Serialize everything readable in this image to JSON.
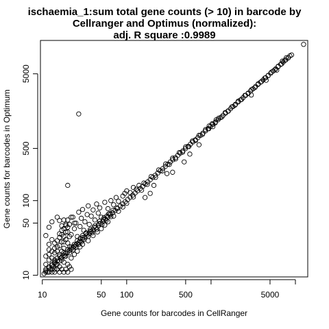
{
  "chart_data": {
    "type": "scatter",
    "title_lines": [
      "ischaemia_1:sum total gene counts (> 10) in barcode by",
      "Cellranger and Optimus (normalized):",
      "adj. R square :0.9989"
    ],
    "xlabel": "Gene counts for barcodes in CellRanger",
    "ylabel": "Gene counts for barcodes in Optimum",
    "xscale": "log",
    "yscale": "log",
    "xlim": [
      9.5,
      14000
    ],
    "ylim": [
      9.5,
      14000
    ],
    "xticks": [
      {
        "value": 10,
        "label": "10"
      },
      {
        "value": 50,
        "label": "50"
      },
      {
        "value": 100,
        "label": "100"
      },
      {
        "value": 500,
        "label": "500"
      },
      {
        "value": 1000,
        "label": ""
      },
      {
        "value": 5000,
        "label": "5000"
      },
      {
        "value": 10000,
        "label": ""
      }
    ],
    "yticks": [
      {
        "value": 10,
        "label": "10"
      },
      {
        "value": 50,
        "label": "50"
      },
      {
        "value": 100,
        "label": "100"
      },
      {
        "value": 500,
        "label": "500"
      },
      {
        "value": 5000,
        "label": "5000"
      }
    ],
    "grid": false,
    "legend": "none",
    "marker": "open-circle",
    "points": [
      [
        10.5,
        10.5
      ],
      [
        11,
        11.5
      ],
      [
        11.5,
        11
      ],
      [
        12,
        12.5
      ],
      [
        12.5,
        12
      ],
      [
        13,
        13.5
      ],
      [
        13.5,
        13
      ],
      [
        14,
        14.5
      ],
      [
        14.5,
        14
      ],
      [
        15,
        15.5
      ],
      [
        16,
        15.5
      ],
      [
        16.5,
        17
      ],
      [
        17,
        17.5
      ],
      [
        18,
        18.5
      ],
      [
        18.5,
        18
      ],
      [
        19,
        19.5
      ],
      [
        20,
        20.5
      ],
      [
        21,
        21.5
      ],
      [
        22,
        22.5
      ],
      [
        23,
        23.5
      ],
      [
        24,
        24.5
      ],
      [
        25,
        25.5
      ],
      [
        26,
        26.5
      ],
      [
        27,
        27.5
      ],
      [
        28,
        28.5
      ],
      [
        30,
        30.5
      ],
      [
        32,
        32.5
      ],
      [
        34,
        34.5
      ],
      [
        36,
        36.5
      ],
      [
        38,
        38.5
      ],
      [
        40,
        40.5
      ],
      [
        43,
        43.5
      ],
      [
        46,
        46.5
      ],
      [
        49,
        49.5
      ],
      [
        52,
        52.5
      ],
      [
        56,
        56.5
      ],
      [
        60,
        60.5
      ],
      [
        64,
        64.5
      ],
      [
        68,
        68.5
      ],
      [
        73,
        73.5
      ],
      [
        78,
        78.5
      ],
      [
        84,
        84.5
      ],
      [
        90,
        90.5
      ],
      [
        96,
        96.5
      ],
      [
        103,
        103.5
      ],
      [
        110,
        110.5
      ],
      [
        118,
        118.5
      ],
      [
        126,
        126.5
      ],
      [
        135,
        135.5
      ],
      [
        145,
        145.5
      ],
      [
        155,
        155.5
      ],
      [
        166,
        166.5
      ],
      [
        178,
        178.5
      ],
      [
        190,
        190.5
      ],
      [
        204,
        204.5
      ],
      [
        218,
        218.5
      ],
      [
        234,
        234.5
      ],
      [
        250,
        250.5
      ],
      [
        268,
        268.5
      ],
      [
        287,
        287.5
      ],
      [
        307,
        307.5
      ],
      [
        329,
        329.5
      ],
      [
        352,
        352.5
      ],
      [
        377,
        377.5
      ],
      [
        404,
        404.5
      ],
      [
        432,
        432.5
      ],
      [
        463,
        463.5
      ],
      [
        496,
        496.5
      ],
      [
        531,
        531.5
      ],
      [
        569,
        569.5
      ],
      [
        609,
        609.5
      ],
      [
        652,
        652.5
      ],
      [
        698,
        698.5
      ],
      [
        748,
        748.5
      ],
      [
        801,
        801.5
      ],
      [
        858,
        858.5
      ],
      [
        918,
        918.5
      ],
      [
        983,
        983.5
      ],
      [
        1053,
        1053.5
      ],
      [
        1128,
        1128.5
      ],
      [
        1208,
        1208.5
      ],
      [
        1293,
        1293.5
      ],
      [
        1385,
        1385.5
      ],
      [
        1483,
        1483.5
      ],
      [
        1588,
        1588.5
      ],
      [
        1701,
        1701.5
      ],
      [
        1821,
        1821.5
      ],
      [
        1950,
        1950.5
      ],
      [
        2088,
        2088.5
      ],
      [
        2236,
        2236.5
      ],
      [
        2395,
        2395.5
      ],
      [
        2564,
        2564.5
      ],
      [
        2746,
        2746.5
      ],
      [
        2941,
        2941.5
      ],
      [
        3149,
        3149.5
      ],
      [
        3372,
        3372.5
      ],
      [
        3611,
        3611.5
      ],
      [
        3867,
        3867.5
      ],
      [
        4141,
        4141.5
      ],
      [
        4435,
        4435.5
      ],
      [
        4749,
        4749.5
      ],
      [
        5086,
        5086.5
      ],
      [
        5446,
        5446.5
      ],
      [
        5832,
        5832.5
      ],
      [
        6245,
        6245.5
      ],
      [
        6688,
        6688.5
      ],
      [
        7162,
        7162.5
      ],
      [
        7669,
        7669.5
      ],
      [
        8213,
        8213.5
      ],
      [
        12500,
        12400
      ],
      [
        11,
        14
      ],
      [
        11,
        18
      ],
      [
        12,
        22
      ],
      [
        12,
        26
      ],
      [
        13,
        30
      ],
      [
        11,
        34
      ],
      [
        13,
        12
      ],
      [
        14,
        20
      ],
      [
        15,
        24
      ],
      [
        16,
        32
      ],
      [
        17,
        40
      ],
      [
        18,
        28
      ],
      [
        19,
        46
      ],
      [
        20,
        38
      ],
      [
        20,
        55
      ],
      [
        21,
        24
      ],
      [
        22,
        35
      ],
      [
        23,
        60
      ],
      [
        24,
        42
      ],
      [
        25,
        50
      ],
      [
        26,
        33
      ],
      [
        27,
        70
      ],
      [
        28,
        45
      ],
      [
        29,
        58
      ],
      [
        30,
        76
      ],
      [
        31,
        40
      ],
      [
        32,
        52
      ],
      [
        34,
        65
      ],
      [
        35,
        85
      ],
      [
        36,
        48
      ],
      [
        38,
        62
      ],
      [
        40,
        75
      ],
      [
        42,
        55
      ],
      [
        44,
        90
      ],
      [
        46,
        68
      ],
      [
        48,
        80
      ],
      [
        50,
        60
      ],
      [
        55,
        95
      ],
      [
        60,
        78
      ],
      [
        65,
        100
      ],
      [
        70,
        88
      ],
      [
        75,
        110
      ],
      [
        80,
        98
      ],
      [
        90,
        115
      ],
      [
        95,
        125
      ],
      [
        100,
        135
      ],
      [
        110,
        128
      ],
      [
        120,
        150
      ],
      [
        130,
        142
      ],
      [
        140,
        160
      ],
      [
        15,
        60
      ],
      [
        16,
        54
      ],
      [
        18,
        55
      ],
      [
        20,
        160
      ],
      [
        22,
        60
      ],
      [
        19,
        48
      ],
      [
        24,
        50
      ],
      [
        17,
        35
      ],
      [
        13,
        52
      ],
      [
        12,
        44
      ],
      [
        14,
        12
      ],
      [
        16,
        13
      ],
      [
        18,
        15
      ],
      [
        20,
        14
      ],
      [
        22,
        17
      ],
      [
        24,
        19
      ],
      [
        26,
        21
      ],
      [
        28,
        24
      ],
      [
        30,
        26
      ],
      [
        35,
        29
      ],
      [
        40,
        34
      ],
      [
        45,
        38
      ],
      [
        50,
        42
      ],
      [
        55,
        47
      ],
      [
        60,
        52
      ],
      [
        70,
        62
      ],
      [
        80,
        72
      ],
      [
        90,
        82
      ],
      [
        100,
        92
      ],
      [
        120,
        112
      ],
      [
        11,
        11
      ],
      [
        11,
        12
      ],
      [
        12,
        11
      ],
      [
        12,
        13
      ],
      [
        13,
        11
      ],
      [
        13,
        14
      ],
      [
        14,
        11
      ],
      [
        15,
        12
      ],
      [
        16,
        11
      ],
      [
        17,
        12
      ],
      [
        18,
        11
      ],
      [
        19,
        12
      ],
      [
        20,
        11
      ],
      [
        21,
        13
      ],
      [
        22,
        12
      ],
      [
        14,
        15
      ],
      [
        15,
        17
      ],
      [
        16,
        19
      ],
      [
        17,
        21
      ],
      [
        18,
        23
      ],
      [
        30,
        32
      ],
      [
        33,
        36
      ],
      [
        37,
        39
      ],
      [
        41,
        44
      ],
      [
        47,
        49
      ],
      [
        53,
        56
      ],
      [
        58,
        62
      ],
      [
        63,
        67
      ],
      [
        69,
        74
      ],
      [
        76,
        80
      ],
      [
        150,
        138
      ],
      [
        160,
        172
      ],
      [
        175,
        165
      ],
      [
        195,
        210
      ],
      [
        220,
        205
      ],
      [
        240,
        258
      ],
      [
        265,
        250
      ],
      [
        290,
        310
      ],
      [
        320,
        305
      ],
      [
        350,
        370
      ],
      [
        380,
        362
      ],
      [
        420,
        440
      ],
      [
        460,
        445
      ],
      [
        500,
        525
      ],
      [
        545,
        530
      ],
      [
        600,
        628
      ],
      [
        655,
        640
      ],
      [
        720,
        750
      ],
      [
        790,
        770
      ],
      [
        860,
        895
      ],
      [
        940,
        920
      ],
      [
        1030,
        1070
      ],
      [
        1120,
        1100
      ],
      [
        1230,
        1270
      ],
      [
        1340,
        1320
      ],
      [
        1470,
        1510
      ],
      [
        1600,
        1580
      ],
      [
        1760,
        1800
      ],
      [
        1920,
        1900
      ],
      [
        2100,
        2150
      ],
      [
        2300,
        2270
      ],
      [
        2520,
        2570
      ],
      [
        2750,
        2720
      ],
      [
        3020,
        3070
      ],
      [
        3300,
        3270
      ],
      [
        3620,
        3670
      ],
      [
        3960,
        3930
      ],
      [
        4340,
        4390
      ],
      [
        4750,
        4720
      ],
      [
        5200,
        5260
      ],
      [
        5700,
        5660
      ],
      [
        6250,
        6310
      ],
      [
        6850,
        6800
      ],
      [
        7500,
        7570
      ],
      [
        8200,
        8150
      ],
      [
        8600,
        8700
      ],
      [
        9000,
        8950
      ],
      [
        27,
        1450
      ],
      [
        720,
        560
      ],
      [
        560,
        420
      ],
      [
        480,
        330
      ],
      [
        350,
        240
      ],
      [
        300,
        230
      ],
      [
        210,
        160
      ],
      [
        190,
        125
      ],
      [
        165,
        110
      ],
      [
        950,
        1000
      ],
      [
        1050,
        980
      ],
      [
        1150,
        1210
      ],
      [
        3000,
        2600
      ],
      [
        4500,
        4100
      ],
      [
        6000,
        5600
      ],
      [
        7000,
        7400
      ],
      [
        7800,
        8200
      ],
      [
        14,
        16
      ],
      [
        15,
        14
      ],
      [
        16,
        18
      ],
      [
        17,
        16
      ],
      [
        18,
        20
      ],
      [
        19,
        18
      ],
      [
        20,
        22
      ],
      [
        21,
        20
      ],
      [
        22,
        24
      ],
      [
        23,
        22
      ],
      [
        24,
        26
      ],
      [
        25,
        24
      ],
      [
        26,
        29
      ],
      [
        27,
        26
      ],
      [
        28,
        31
      ],
      [
        29,
        28
      ],
      [
        30,
        34
      ],
      [
        31,
        30
      ],
      [
        33,
        37
      ],
      [
        35,
        33
      ],
      [
        37,
        41
      ],
      [
        39,
        37
      ],
      [
        42,
        46
      ],
      [
        44,
        41
      ],
      [
        48,
        53
      ],
      [
        51,
        48
      ],
      [
        54,
        59
      ],
      [
        57,
        54
      ],
      [
        61,
        66
      ],
      [
        65,
        61
      ],
      [
        12,
        16
      ],
      [
        12,
        19
      ],
      [
        13,
        17
      ],
      [
        13,
        21
      ],
      [
        14,
        23
      ],
      [
        14,
        27
      ],
      [
        15,
        29
      ],
      [
        15,
        21
      ],
      [
        16,
        25
      ],
      [
        16,
        36
      ],
      [
        17,
        28
      ],
      [
        17,
        46
      ],
      [
        18,
        33
      ],
      [
        18,
        42
      ],
      [
        19,
        30
      ],
      [
        19,
        38
      ],
      [
        20,
        44
      ],
      [
        20,
        27
      ],
      [
        21,
        33
      ],
      [
        21,
        48
      ]
    ]
  }
}
